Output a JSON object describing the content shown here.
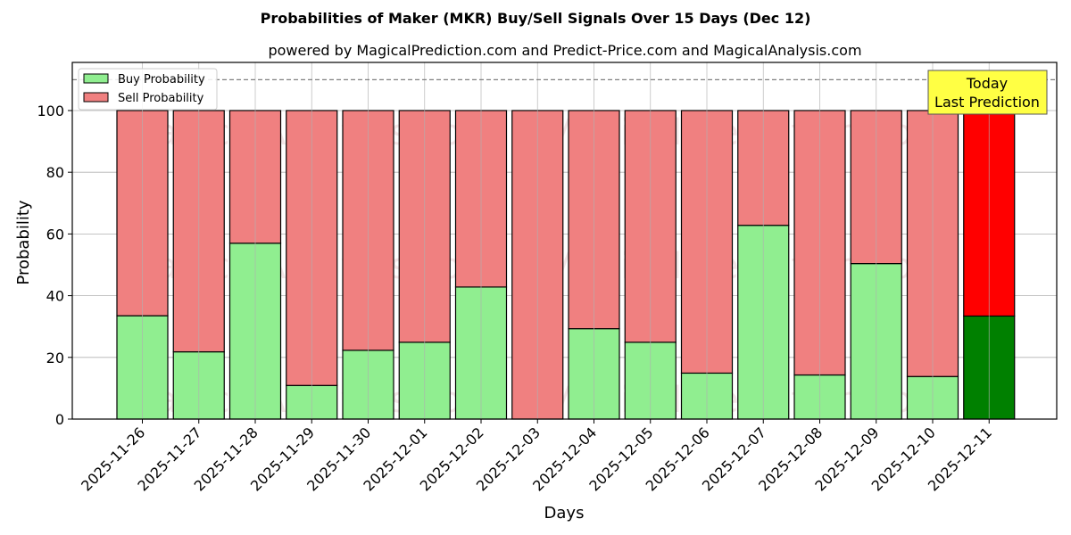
{
  "chart_data": {
    "type": "bar",
    "stacked": true,
    "title": "Probabilities of Maker (MKR) Buy/Sell Signals Over 15 Days (Dec 12)",
    "subtitle": "powered by MagicalPrediction.com and Predict-Price.com and MagicalAnalysis.com",
    "xlabel": "Days",
    "ylabel": "Probability",
    "ylim": [
      0,
      115.6
    ],
    "yticks": [
      0,
      20,
      40,
      60,
      80,
      100
    ],
    "grid": true,
    "legend_position": "upper left",
    "categories": [
      "2025-11-26",
      "2025-11-27",
      "2025-11-28",
      "2025-11-29",
      "2025-11-30",
      "2025-12-01",
      "2025-12-02",
      "2025-12-03",
      "2025-12-04",
      "2025-12-05",
      "2025-12-06",
      "2025-12-07",
      "2025-12-08",
      "2025-12-09",
      "2025-12-10",
      "2025-12-11"
    ],
    "series": [
      {
        "name": "Buy Probability",
        "color": "#90ee90",
        "values": [
          33.5,
          21.8,
          57.0,
          10.9,
          22.3,
          24.9,
          42.8,
          0.0,
          29.3,
          24.9,
          14.9,
          62.8,
          14.3,
          50.4,
          13.8,
          33.4
        ]
      },
      {
        "name": "Sell Probability",
        "color": "#f08080",
        "values": [
          66.5,
          78.2,
          43.0,
          89.1,
          77.7,
          75.1,
          57.2,
          100.0,
          70.7,
          75.1,
          85.1,
          37.2,
          85.7,
          49.6,
          86.2,
          66.6
        ]
      }
    ],
    "highlight": {
      "index": 15,
      "buy_color": "#008000",
      "sell_color": "#ff0000"
    },
    "reference_line": {
      "y": 110,
      "style": "dashed",
      "color": "#808080"
    },
    "annotation": {
      "line1": "Today",
      "line2": "Last Prediction",
      "background": "#ffff44"
    },
    "watermarks": [
      "MagicalAnalysis.com",
      "MagicalPrediction.com"
    ]
  }
}
